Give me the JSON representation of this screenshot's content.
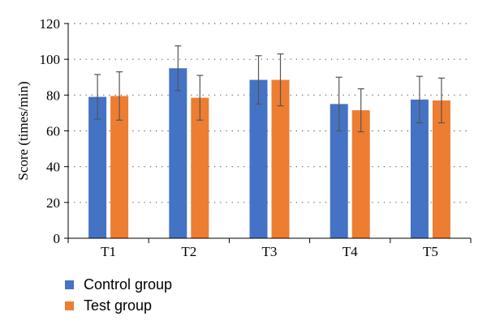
{
  "chart_data": {
    "type": "bar",
    "categories": [
      "T1",
      "T2",
      "T3",
      "T4",
      "T5"
    ],
    "ylabel": "Score (times/min)",
    "xlabel": "",
    "ylim": [
      0,
      120
    ],
    "yticks": [
      0,
      20,
      40,
      60,
      80,
      100,
      120
    ],
    "grid": "horizontal dotted",
    "legend_position": "bottom-left",
    "error_bars": true,
    "series": [
      {
        "name": "Control group",
        "color": "#4472c4",
        "values": [
          79,
          95,
          88.5,
          75,
          77.5
        ],
        "errors": [
          12.5,
          12.5,
          13.5,
          15,
          13
        ]
      },
      {
        "name": "Test group",
        "color": "#ed7d31",
        "values": [
          79.5,
          78.5,
          88.5,
          71.5,
          77
        ],
        "errors": [
          13.5,
          12.5,
          14.5,
          12,
          12.5
        ]
      }
    ]
  }
}
